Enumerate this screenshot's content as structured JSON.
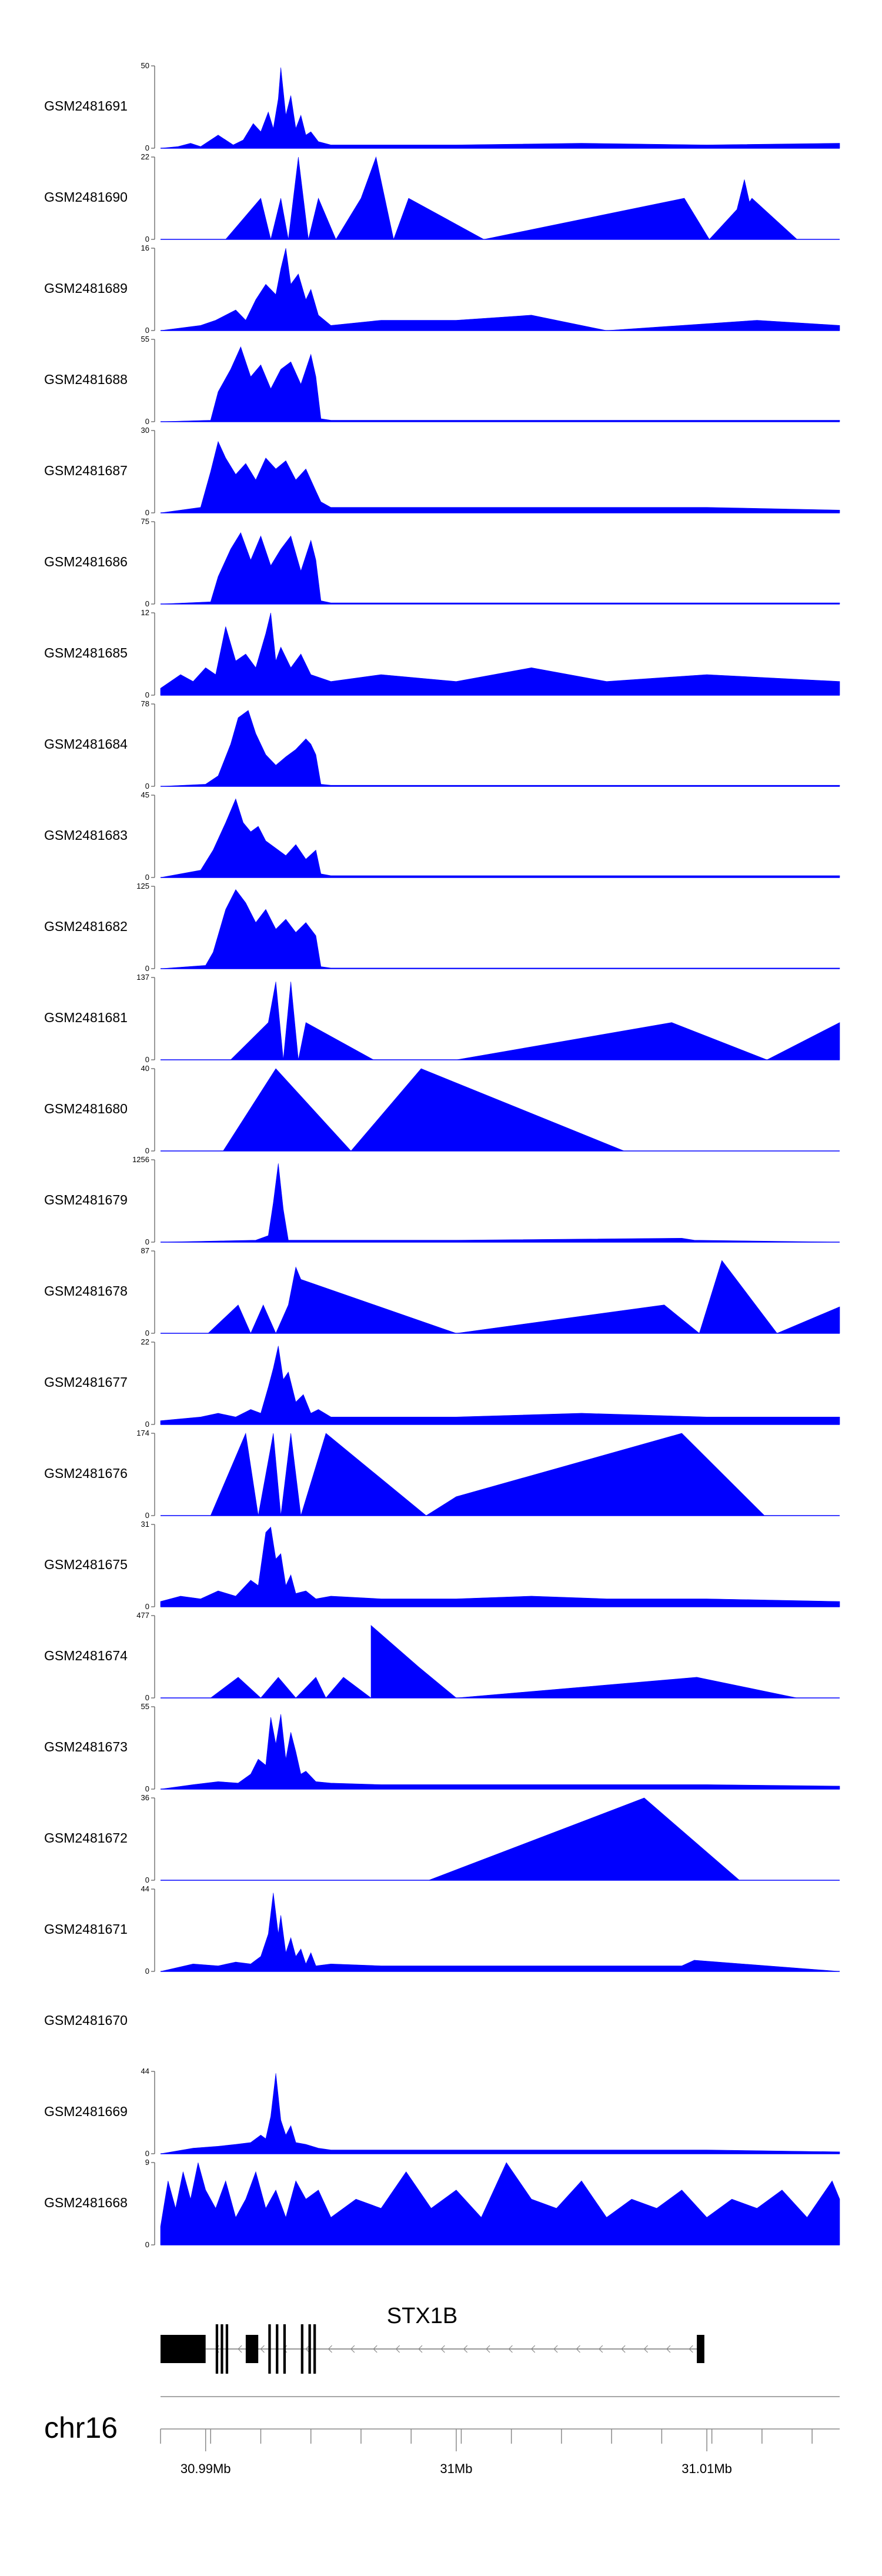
{
  "chart_data": {
    "type": "area",
    "title": "",
    "chromosome": "chr16",
    "gene": {
      "name": "STX1B",
      "strand": "-"
    },
    "x_range_mb": [
      30.9882,
      31.0153
    ],
    "x_ticks": [
      {
        "value": 30.99,
        "label": "30.99Mb"
      },
      {
        "value": 31.0,
        "label": "31Mb"
      },
      {
        "value": 31.01,
        "label": "31.01Mb"
      }
    ],
    "tracks": [
      {
        "name": "GSM2481691",
        "ymax": 50,
        "ymin": 0,
        "x": [
          30.9882,
          30.9889,
          30.9894,
          30.9898,
          30.9905,
          30.9911,
          30.9915,
          30.9919,
          30.9922,
          30.9925,
          30.9927,
          30.9929,
          30.993,
          30.9932,
          30.9934,
          30.9936,
          30.9938,
          30.994,
          30.9942,
          30.9945,
          30.995,
          30.997,
          31.0,
          31.005,
          31.01,
          31.0153
        ],
        "values": [
          0,
          1,
          3,
          1,
          8,
          2,
          5,
          15,
          10,
          22,
          12,
          30,
          49,
          20,
          32,
          12,
          20,
          8,
          10,
          4,
          2,
          2,
          2,
          3,
          2,
          3
        ]
      },
      {
        "name": "GSM2481690",
        "ymax": 22,
        "ymin": 0,
        "x": [
          30.9882,
          30.9908,
          30.9922,
          30.9926,
          30.993,
          30.9933,
          30.9937,
          30.9941,
          30.9945,
          30.9952,
          30.9962,
          30.9968,
          30.9975,
          30.9981,
          31.0011,
          31.0091,
          31.0101,
          31.0112,
          31.0115,
          31.0117,
          31.0118,
          31.0136,
          31.0153
        ],
        "values": [
          0,
          0,
          11,
          0,
          11,
          0,
          22,
          0,
          11,
          0,
          11,
          22,
          0,
          11,
          0,
          11,
          0,
          8,
          16,
          10,
          11,
          0,
          0
        ]
      },
      {
        "name": "GSM2481689",
        "ymax": 16,
        "ymin": 0,
        "x": [
          30.9882,
          30.9898,
          30.9904,
          30.9908,
          30.9912,
          30.9916,
          30.992,
          30.9924,
          30.9928,
          30.993,
          30.9932,
          30.9934,
          30.9937,
          30.994,
          30.9942,
          30.9945,
          30.995,
          30.997,
          31.0,
          31.003,
          31.006,
          31.009,
          31.012,
          31.0153
        ],
        "values": [
          0,
          1,
          2,
          3,
          4,
          2,
          6,
          9,
          7,
          12,
          16,
          9,
          11,
          6,
          8,
          3,
          1,
          2,
          2,
          3,
          0,
          1,
          2,
          1
        ]
      },
      {
        "name": "GSM2481688",
        "ymax": 55,
        "ymin": 0,
        "x": [
          30.9882,
          30.9902,
          30.9905,
          30.991,
          30.9914,
          30.9918,
          30.9922,
          30.9926,
          30.993,
          30.9934,
          30.9938,
          30.9942,
          30.9944,
          30.9946,
          30.995,
          30.997,
          31.005,
          31.0153
        ],
        "values": [
          0,
          1,
          20,
          35,
          50,
          30,
          38,
          22,
          35,
          40,
          25,
          45,
          30,
          2,
          1,
          1,
          1,
          1
        ]
      },
      {
        "name": "GSM2481687",
        "ymax": 30,
        "ymin": 0,
        "x": [
          30.9882,
          30.9898,
          30.9902,
          30.9905,
          30.9908,
          30.9912,
          30.9916,
          30.992,
          30.9924,
          30.9928,
          30.9932,
          30.9936,
          30.994,
          30.9944,
          30.9946,
          30.995,
          30.997,
          31.0,
          31.005,
          31.01,
          31.0153
        ],
        "values": [
          0,
          2,
          15,
          26,
          20,
          14,
          18,
          12,
          20,
          16,
          19,
          12,
          16,
          8,
          4,
          2,
          2,
          2,
          2,
          2,
          1
        ]
      },
      {
        "name": "GSM2481686",
        "ymax": 75,
        "ymin": 0,
        "x": [
          30.9882,
          30.9902,
          30.9905,
          30.991,
          30.9914,
          30.9918,
          30.9922,
          30.9926,
          30.993,
          30.9934,
          30.9938,
          30.9942,
          30.9944,
          30.9946,
          30.995,
          31.0,
          31.0153
        ],
        "values": [
          0,
          2,
          25,
          50,
          65,
          40,
          62,
          35,
          50,
          62,
          30,
          58,
          40,
          3,
          1,
          1,
          1
        ]
      },
      {
        "name": "GSM2481685",
        "ymax": 12,
        "ymin": 0,
        "x": [
          30.9882,
          30.989,
          30.9895,
          30.99,
          30.9904,
          30.9908,
          30.9912,
          30.9916,
          30.992,
          30.9924,
          30.9926,
          30.9928,
          30.993,
          30.9934,
          30.9938,
          30.9942,
          30.995,
          30.997,
          31.0,
          31.003,
          31.006,
          31.01,
          31.0153
        ],
        "values": [
          1,
          3,
          2,
          4,
          3,
          10,
          5,
          6,
          4,
          9,
          12,
          5,
          7,
          4,
          6,
          3,
          2,
          3,
          2,
          4,
          2,
          3,
          2
        ]
      },
      {
        "name": "GSM2481684",
        "ymax": 78,
        "ymin": 0,
        "x": [
          30.9882,
          30.99,
          30.9905,
          30.991,
          30.9913,
          30.9917,
          30.992,
          30.9924,
          30.9928,
          30.9932,
          30.9936,
          30.994,
          30.9942,
          30.9944,
          30.9946,
          30.995,
          31.0,
          31.015,
          31.0153
        ],
        "values": [
          0,
          2,
          10,
          40,
          65,
          72,
          50,
          30,
          20,
          28,
          35,
          45,
          40,
          30,
          2,
          1,
          1,
          1,
          1
        ]
      },
      {
        "name": "GSM2481683",
        "ymax": 45,
        "ymin": 0,
        "x": [
          30.9882,
          30.9898,
          30.9903,
          30.9908,
          30.9912,
          30.9915,
          30.9918,
          30.9921,
          30.9924,
          30.9928,
          30.9932,
          30.9936,
          30.994,
          30.9944,
          30.9946,
          30.995,
          31.0,
          31.0153
        ],
        "values": [
          0,
          4,
          15,
          30,
          43,
          30,
          25,
          28,
          20,
          16,
          12,
          18,
          10,
          15,
          2,
          1,
          1,
          1
        ]
      },
      {
        "name": "GSM2481682",
        "ymax": 125,
        "ymin": 0,
        "x": [
          30.9882,
          30.99,
          30.9903,
          30.9908,
          30.9912,
          30.9916,
          30.992,
          30.9924,
          30.9928,
          30.9932,
          30.9936,
          30.994,
          30.9944,
          30.9946,
          30.995,
          31.0,
          31.0153
        ],
        "values": [
          0,
          5,
          25,
          90,
          120,
          100,
          70,
          90,
          60,
          75,
          55,
          70,
          50,
          3,
          1,
          1,
          1
        ]
      },
      {
        "name": "GSM2481681",
        "ymax": 137,
        "ymin": 0,
        "x": [
          30.9882,
          30.991,
          30.9925,
          30.9928,
          30.9931,
          30.9934,
          30.9937,
          30.994,
          30.9967,
          31.0,
          31.0086,
          31.0124,
          31.0153
        ],
        "values": [
          0,
          0,
          62,
          130,
          0,
          130,
          0,
          62,
          0,
          0,
          62,
          0,
          62
        ]
      },
      {
        "name": "GSM2481680",
        "ymax": 40,
        "ymin": 0,
        "x": [
          30.9882,
          30.9907,
          30.9928,
          30.9958,
          30.9986,
          31.0067,
          31.0153
        ],
        "values": [
          0,
          0,
          40,
          0,
          40,
          0,
          0
        ]
      },
      {
        "name": "GSM2481679",
        "ymax": 1256,
        "ymin": 0,
        "x": [
          30.9882,
          30.992,
          30.9925,
          30.9927,
          30.9929,
          30.9931,
          30.9933,
          31.0,
          31.009,
          31.0095,
          31.0153
        ],
        "values": [
          0,
          30,
          100,
          600,
          1200,
          500,
          30,
          30,
          60,
          30,
          0
        ]
      },
      {
        "name": "GSM2481678",
        "ymax": 87,
        "ymin": 0,
        "x": [
          30.9882,
          30.9901,
          30.9913,
          30.9918,
          30.9923,
          30.9928,
          30.9933,
          30.9936,
          30.9938,
          31.0,
          31.0083,
          31.0097,
          31.0106,
          31.0128,
          31.0153
        ],
        "values": [
          0,
          0,
          30,
          0,
          30,
          0,
          30,
          70,
          57,
          0,
          30,
          0,
          77,
          0,
          28
        ]
      },
      {
        "name": "GSM2481677",
        "ymax": 22,
        "ymin": 0,
        "x": [
          30.9882,
          30.9898,
          30.9905,
          30.9912,
          30.9918,
          30.9922,
          30.9925,
          30.9927,
          30.9929,
          30.9931,
          30.9933,
          30.9936,
          30.9939,
          30.9942,
          30.9945,
          30.995,
          30.997,
          31.0,
          31.005,
          31.01,
          31.0153
        ],
        "values": [
          1,
          2,
          3,
          2,
          4,
          3,
          10,
          15,
          21,
          12,
          14,
          6,
          8,
          3,
          4,
          2,
          2,
          2,
          3,
          2,
          2
        ]
      },
      {
        "name": "GSM2481676",
        "ymax": 174,
        "ymin": 0,
        "x": [
          30.9882,
          30.9902,
          30.9916,
          30.9921,
          30.9927,
          30.993,
          30.9934,
          30.9938,
          30.9948,
          30.9988,
          31.0,
          31.009,
          31.0123,
          31.0153
        ],
        "values": [
          0,
          0,
          174,
          0,
          174,
          0,
          174,
          0,
          174,
          0,
          40,
          174,
          0,
          0
        ]
      },
      {
        "name": "GSM2481675",
        "ymax": 31,
        "ymin": 0,
        "x": [
          30.9882,
          30.989,
          30.9898,
          30.9905,
          30.9912,
          30.9918,
          30.9921,
          30.9924,
          30.9926,
          30.9928,
          30.993,
          30.9932,
          30.9934,
          30.9936,
          30.994,
          30.9944,
          30.995,
          30.997,
          31.0,
          31.003,
          31.006,
          31.01,
          31.0153
        ],
        "values": [
          2,
          4,
          3,
          6,
          4,
          10,
          8,
          28,
          30,
          18,
          20,
          8,
          12,
          5,
          6,
          3,
          4,
          3,
          3,
          4,
          3,
          3,
          2
        ]
      },
      {
        "name": "GSM2481674",
        "ymax": 477,
        "ymin": 0,
        "x": [
          30.9882,
          30.9902,
          30.9913,
          30.9922,
          30.9929,
          30.9936,
          30.9944,
          30.9948,
          30.9955,
          30.9966,
          30.9966,
          30.9985,
          31.0,
          31.0096,
          31.0136,
          31.0153
        ],
        "values": [
          0,
          0,
          120,
          0,
          120,
          0,
          120,
          0,
          120,
          0,
          420,
          180,
          0,
          120,
          0,
          0
        ]
      },
      {
        "name": "GSM2481673",
        "ymax": 55,
        "ymin": 0,
        "x": [
          30.9882,
          30.9895,
          30.9905,
          30.9913,
          30.9918,
          30.9921,
          30.9924,
          30.9926,
          30.9928,
          30.993,
          30.9932,
          30.9934,
          30.9936,
          30.9938,
          30.994,
          30.9944,
          30.995,
          30.997,
          31.0,
          31.005,
          31.01,
          31.0153
        ],
        "values": [
          0,
          3,
          5,
          4,
          10,
          20,
          16,
          48,
          30,
          50,
          20,
          38,
          25,
          10,
          12,
          5,
          4,
          3,
          3,
          3,
          3,
          2
        ]
      },
      {
        "name": "GSM2481672",
        "ymax": 36,
        "ymin": 0,
        "x": [
          30.9882,
          30.9989,
          31.0075,
          31.0113,
          31.0153
        ],
        "values": [
          0,
          0,
          36,
          0,
          0
        ]
      },
      {
        "name": "GSM2481671",
        "ymax": 44,
        "ymin": 0,
        "x": [
          30.9882,
          30.9895,
          30.9905,
          30.9912,
          30.9918,
          30.9922,
          30.9925,
          30.9927,
          30.9929,
          30.993,
          30.9932,
          30.9934,
          30.9936,
          30.9938,
          30.994,
          30.9942,
          30.9944,
          30.995,
          30.997,
          31.0,
          31.005,
          31.009,
          31.0095,
          31.0153
        ],
        "values": [
          0,
          4,
          3,
          5,
          4,
          8,
          20,
          42,
          20,
          30,
          10,
          18,
          8,
          12,
          4,
          10,
          3,
          4,
          3,
          3,
          3,
          3,
          6,
          0
        ]
      },
      {
        "name": "GSM2481670",
        "ymax": null,
        "ymin": null,
        "x": [],
        "values": []
      },
      {
        "name": "GSM2481669",
        "ymax": 44,
        "ymin": 0,
        "x": [
          30.9882,
          30.9895,
          30.9905,
          30.9912,
          30.9918,
          30.9922,
          30.9924,
          30.9926,
          30.9928,
          30.993,
          30.9932,
          30.9934,
          30.9936,
          30.994,
          30.9945,
          30.995,
          31.0,
          31.005,
          31.01,
          31.0153
        ],
        "values": [
          0,
          3,
          4,
          5,
          6,
          10,
          8,
          20,
          43,
          18,
          10,
          15,
          6,
          5,
          3,
          2,
          2,
          2,
          2,
          1
        ]
      },
      {
        "name": "GSM2481668",
        "ymax": 9,
        "ymin": 0,
        "x": [
          30.9882,
          30.9885,
          30.9888,
          30.9891,
          30.9894,
          30.9897,
          30.99,
          30.9904,
          30.9908,
          30.9912,
          30.9916,
          30.992,
          30.9924,
          30.9928,
          30.9932,
          30.9936,
          30.994,
          30.9945,
          30.995,
          30.996,
          30.997,
          30.998,
          30.999,
          31.0,
          31.001,
          31.002,
          31.003,
          31.004,
          31.005,
          31.006,
          31.007,
          31.008,
          31.009,
          31.01,
          31.011,
          31.012,
          31.013,
          31.014,
          31.015,
          31.0153
        ],
        "values": [
          2,
          7,
          4,
          8,
          5,
          9,
          6,
          4,
          7,
          3,
          5,
          8,
          4,
          6,
          3,
          7,
          5,
          6,
          3,
          5,
          4,
          8,
          4,
          6,
          3,
          9,
          5,
          4,
          7,
          3,
          5,
          4,
          6,
          3,
          5,
          4,
          6,
          3,
          7,
          5
        ]
      }
    ],
    "gene_model": {
      "exons": [
        [
          30.9882,
          30.99
        ],
        [
          30.9904,
          30.9905
        ],
        [
          30.9906,
          30.9907
        ],
        [
          30.9908,
          30.9909
        ],
        [
          30.9916,
          30.9921
        ],
        [
          30.9925,
          30.9926
        ],
        [
          30.9928,
          30.9929
        ],
        [
          30.9931,
          30.9932
        ],
        [
          30.9938,
          30.9939
        ],
        [
          30.9941,
          30.9942
        ],
        [
          30.9943,
          30.9944
        ],
        [
          31.0096,
          31.0099
        ]
      ],
      "intron_start": 30.99,
      "intron_end": 31.0097
    }
  }
}
